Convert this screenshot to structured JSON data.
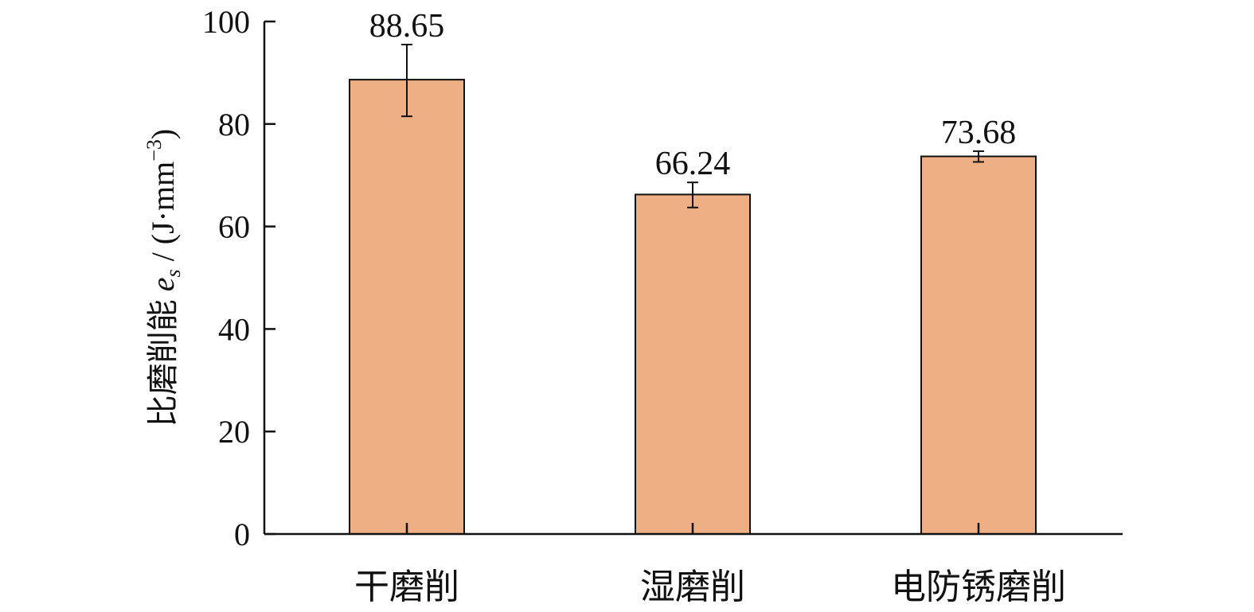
{
  "chart_data": {
    "type": "bar",
    "categories": [
      "干磨削",
      "湿磨削",
      "电防锈磨削"
    ],
    "values": [
      88.65,
      66.24,
      73.68
    ],
    "data_labels": [
      "88.65",
      "66.24",
      "73.68"
    ],
    "error_low": [
      81.5,
      63.7,
      72.6
    ],
    "error_high": [
      95.5,
      68.6,
      74.7
    ],
    "ylabel": {
      "prefix": "比磨削能 ",
      "symbol": "e",
      "subscript": "s",
      "unit": " / (J·mm",
      "exponent": "−3",
      "close": ")"
    },
    "xlabel": "",
    "ylim": [
      0,
      100
    ],
    "yticks": [
      0,
      20,
      40,
      60,
      80,
      100
    ],
    "ytick_labels": [
      "0",
      "20",
      "40",
      "60",
      "80",
      "100"
    ],
    "grid": false,
    "legend": "none",
    "bar_color": "#EEAF84"
  }
}
